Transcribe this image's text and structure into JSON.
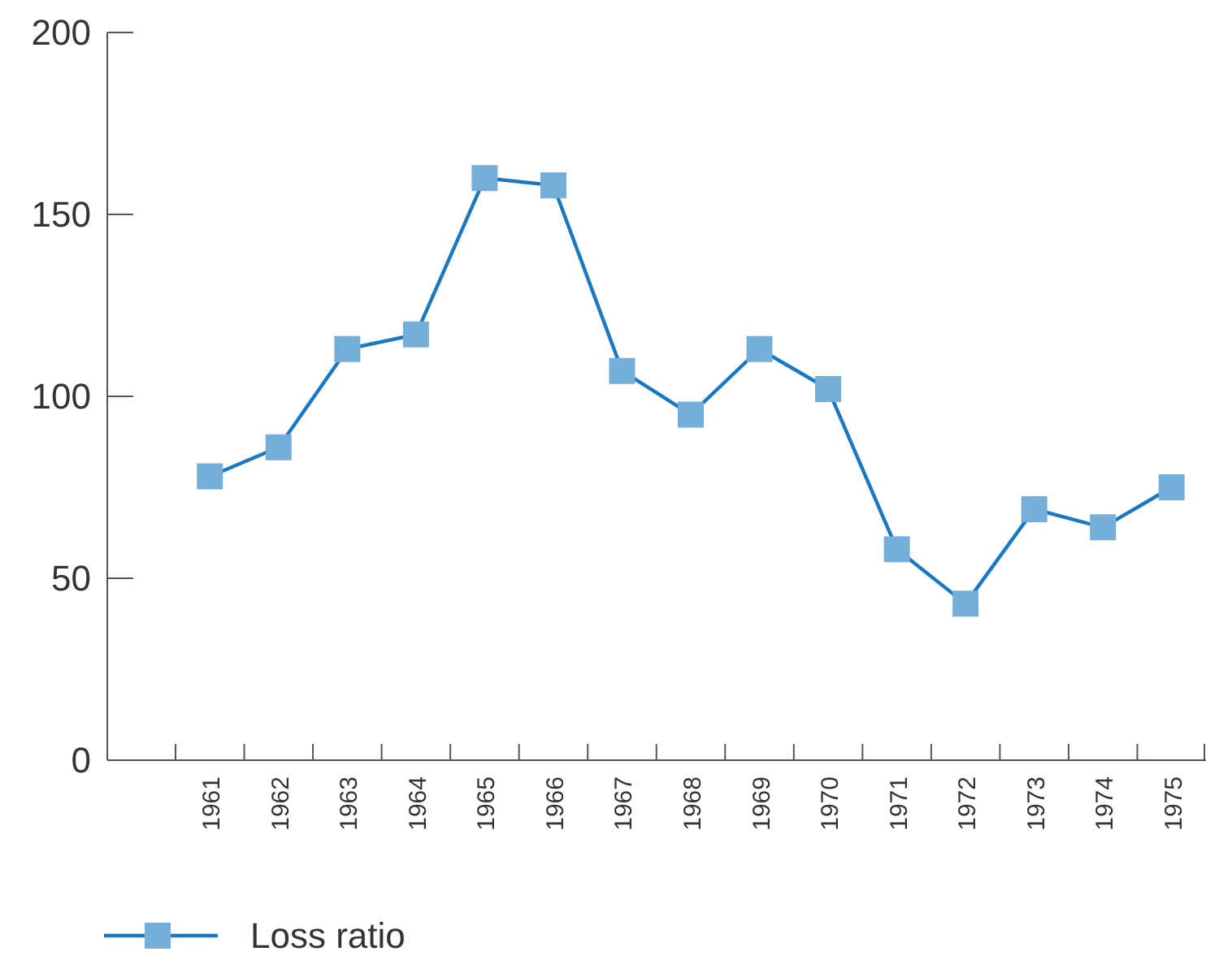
{
  "chart_data": {
    "type": "line",
    "categories": [
      "1961",
      "1962",
      "1963",
      "1964",
      "1965",
      "1966",
      "1967",
      "1968",
      "1969",
      "1970",
      "1971",
      "1972",
      "1973",
      "1974",
      "1975"
    ],
    "series": [
      {
        "name": "Loss ratio",
        "color": "#1a78c2",
        "values": [
          78,
          86,
          113,
          117,
          160,
          158,
          107,
          95,
          113,
          102,
          58,
          43,
          69,
          64,
          75
        ]
      }
    ],
    "ylim": [
      0,
      200
    ],
    "yticks": [
      0,
      50,
      100,
      150,
      200
    ],
    "grid": false,
    "legend": "bottom left",
    "marker": "square",
    "line_style": "solid"
  }
}
